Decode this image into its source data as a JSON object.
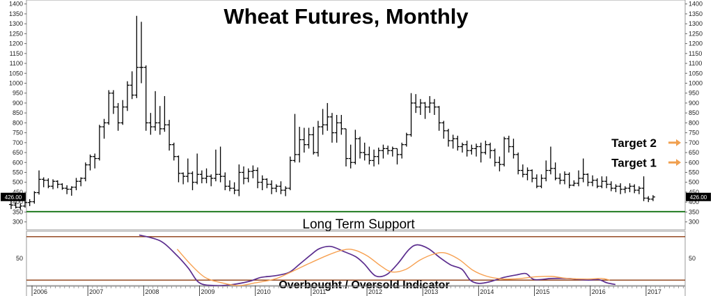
{
  "chart_data": {
    "type": "line",
    "title": "Wheat Futures, Monthly",
    "price_panel": {
      "ylim": [
        260,
        1420
      ],
      "yticks": [
        300,
        350,
        400,
        450,
        500,
        550,
        600,
        650,
        700,
        750,
        800,
        850,
        900,
        950,
        1000,
        1050,
        1100,
        1150,
        1200,
        1250,
        1300,
        1350,
        1400
      ],
      "last_price_label": "426.00",
      "last_price": 426,
      "support": {
        "value": 352,
        "label": "Long Term Support",
        "color": "#1f7a1f"
      },
      "targets": [
        {
          "label": "Target 2",
          "value": 700,
          "color": "#f0a050"
        },
        {
          "label": "Target 1",
          "value": 600,
          "color": "#f0a050"
        }
      ],
      "bars_start": [
        2005,
        8
      ],
      "ohlc": [
        [
          388,
          410,
          365,
          385
        ],
        [
          385,
          398,
          368,
          374
        ],
        [
          374,
          392,
          362,
          380
        ],
        [
          380,
          405,
          372,
          398
        ],
        [
          398,
          415,
          380,
          402
        ],
        [
          402,
          455,
          392,
          448
        ],
        [
          448,
          560,
          438,
          515
        ],
        [
          515,
          525,
          475,
          510
        ],
        [
          510,
          520,
          470,
          480
        ],
        [
          480,
          515,
          465,
          505
        ],
        [
          505,
          510,
          470,
          490
        ],
        [
          490,
          495,
          462,
          470
        ],
        [
          470,
          485,
          440,
          465
        ],
        [
          465,
          480,
          432,
          475
        ],
        [
          475,
          522,
          460,
          505
        ],
        [
          505,
          525,
          480,
          520
        ],
        [
          520,
          600,
          505,
          588
        ],
        [
          588,
          640,
          560,
          630
        ],
        [
          630,
          645,
          570,
          620
        ],
        [
          620,
          790,
          610,
          780
        ],
        [
          780,
          820,
          720,
          800
        ],
        [
          800,
          965,
          790,
          950
        ],
        [
          950,
          965,
          845,
          880
        ],
        [
          880,
          900,
          760,
          800
        ],
        [
          800,
          915,
          790,
          880
        ],
        [
          880,
          1010,
          860,
          990
        ],
        [
          990,
          1060,
          920,
          940
        ],
        [
          940,
          1340,
          925,
          1080
        ],
        [
          1080,
          1310,
          1000,
          1080
        ],
        [
          1080,
          1090,
          760,
          800
        ],
        [
          800,
          850,
          740,
          780
        ],
        [
          780,
          960,
          760,
          800
        ],
        [
          800,
          885,
          740,
          770
        ],
        [
          770,
          935,
          755,
          790
        ],
        [
          790,
          815,
          660,
          690
        ],
        [
          690,
          700,
          610,
          630
        ],
        [
          630,
          635,
          500,
          545
        ],
        [
          545,
          550,
          490,
          530
        ],
        [
          530,
          620,
          500,
          545
        ],
        [
          545,
          555,
          460,
          500
        ],
        [
          500,
          645,
          490,
          540
        ],
        [
          540,
          560,
          495,
          520
        ],
        [
          520,
          570,
          495,
          530
        ],
        [
          530,
          540,
          480,
          520
        ],
        [
          520,
          665,
          505,
          540
        ],
        [
          540,
          680,
          500,
          530
        ],
        [
          530,
          550,
          460,
          480
        ],
        [
          480,
          510,
          455,
          470
        ],
        [
          470,
          500,
          440,
          460
        ],
        [
          460,
          590,
          430,
          550
        ],
        [
          550,
          580,
          490,
          520
        ],
        [
          520,
          570,
          500,
          555
        ],
        [
          555,
          585,
          520,
          560
        ],
        [
          560,
          575,
          470,
          500
        ],
        [
          500,
          535,
          460,
          515
        ],
        [
          515,
          520,
          470,
          490
        ],
        [
          490,
          510,
          440,
          470
        ],
        [
          470,
          490,
          450,
          480
        ],
        [
          480,
          505,
          440,
          460
        ],
        [
          460,
          480,
          430,
          470
        ],
        [
          470,
          630,
          460,
          610
        ],
        [
          610,
          845,
          600,
          640
        ],
        [
          640,
          780,
          600,
          715
        ],
        [
          715,
          775,
          650,
          690
        ],
        [
          690,
          775,
          670,
          740
        ],
        [
          740,
          780,
          640,
          650
        ],
        [
          650,
          810,
          630,
          780
        ],
        [
          780,
          870,
          740,
          790
        ],
        [
          790,
          900,
          760,
          830
        ],
        [
          830,
          850,
          700,
          750
        ],
        [
          750,
          840,
          700,
          800
        ],
        [
          800,
          840,
          740,
          770
        ],
        [
          770,
          770,
          580,
          620
        ],
        [
          620,
          690,
          570,
          600
        ],
        [
          600,
          765,
          590,
          720
        ],
        [
          720,
          730,
          620,
          650
        ],
        [
          650,
          700,
          610,
          640
        ],
        [
          640,
          680,
          590,
          610
        ],
        [
          610,
          665,
          580,
          630
        ],
        [
          630,
          675,
          590,
          660
        ],
        [
          660,
          690,
          620,
          670
        ],
        [
          670,
          685,
          640,
          660
        ],
        [
          660,
          680,
          630,
          670
        ],
        [
          670,
          670,
          590,
          640
        ],
        [
          640,
          700,
          620,
          690
        ],
        [
          690,
          750,
          680,
          740
        ],
        [
          740,
          950,
          730,
          900
        ],
        [
          900,
          945,
          850,
          880
        ],
        [
          880,
          920,
          840,
          900
        ],
        [
          900,
          905,
          820,
          880
        ],
        [
          880,
          935,
          850,
          900
        ],
        [
          900,
          920,
          840,
          880
        ],
        [
          880,
          885,
          760,
          800
        ],
        [
          800,
          810,
          720,
          760
        ],
        [
          760,
          770,
          680,
          710
        ],
        [
          710,
          740,
          670,
          720
        ],
        [
          720,
          735,
          660,
          680
        ],
        [
          680,
          700,
          650,
          690
        ],
        [
          690,
          710,
          630,
          660
        ],
        [
          660,
          690,
          640,
          670
        ],
        [
          670,
          695,
          630,
          680
        ],
        [
          680,
          700,
          600,
          650
        ],
        [
          650,
          710,
          640,
          690
        ],
        [
          690,
          700,
          620,
          660
        ],
        [
          660,
          670,
          580,
          600
        ],
        [
          600,
          630,
          555,
          590
        ],
        [
          590,
          730,
          580,
          720
        ],
        [
          720,
          735,
          650,
          680
        ],
        [
          680,
          720,
          620,
          640
        ],
        [
          640,
          650,
          540,
          560
        ],
        [
          560,
          590,
          525,
          540
        ],
        [
          540,
          575,
          510,
          560
        ],
        [
          560,
          565,
          500,
          520
        ],
        [
          520,
          540,
          470,
          480
        ],
        [
          480,
          540,
          470,
          520
        ],
        [
          520,
          610,
          505,
          560
        ],
        [
          560,
          680,
          540,
          570
        ],
        [
          570,
          600,
          510,
          520
        ],
        [
          520,
          545,
          490,
          510
        ],
        [
          510,
          555,
          490,
          540
        ],
        [
          540,
          550,
          470,
          485
        ],
        [
          485,
          510,
          480,
          495
        ],
        [
          495,
          560,
          480,
          520
        ],
        [
          520,
          620,
          500,
          540
        ],
        [
          540,
          545,
          480,
          500
        ],
        [
          500,
          535,
          480,
          510
        ],
        [
          510,
          520,
          470,
          480
        ],
        [
          480,
          530,
          470,
          505
        ],
        [
          505,
          530,
          470,
          490
        ],
        [
          490,
          505,
          455,
          470
        ],
        [
          470,
          490,
          450,
          480
        ],
        [
          480,
          495,
          440,
          465
        ],
        [
          465,
          480,
          445,
          470
        ],
        [
          470,
          495,
          450,
          480
        ],
        [
          480,
          490,
          445,
          460
        ],
        [
          460,
          480,
          440,
          470
        ],
        [
          470,
          530,
          405,
          420
        ],
        [
          420,
          430,
          400,
          415
        ],
        [
          415,
          435,
          405,
          426
        ]
      ]
    },
    "indicator_panel": {
      "label": "Overbought / Oversold Indicator",
      "ylim": [
        0,
        100
      ],
      "yticks": [
        50
      ],
      "upper_band": 90,
      "lower_band": 10,
      "band_color": "#8b3a0f",
      "series": [
        {
          "color": "#5b2d8e",
          "points": [
            [
              2007.92,
              93
            ],
            [
              2008.3,
              82
            ],
            [
              2008.6,
              55
            ],
            [
              2008.8,
              32
            ],
            [
              2009.0,
              5
            ],
            [
              2009.3,
              0
            ],
            [
              2009.6,
              2
            ],
            [
              2009.9,
              8
            ],
            [
              2010.1,
              15
            ],
            [
              2010.35,
              18
            ],
            [
              2010.6,
              24
            ],
            [
              2010.8,
              40
            ],
            [
              2011.0,
              57
            ],
            [
              2011.15,
              68
            ],
            [
              2011.35,
              72
            ],
            [
              2011.6,
              62
            ],
            [
              2011.8,
              53
            ],
            [
              2011.95,
              40
            ],
            [
              2012.15,
              18
            ],
            [
              2012.35,
              20
            ],
            [
              2012.55,
              40
            ],
            [
              2012.75,
              66
            ],
            [
              2012.9,
              75
            ],
            [
              2013.1,
              68
            ],
            [
              2013.3,
              52
            ],
            [
              2013.5,
              38
            ],
            [
              2013.7,
              30
            ],
            [
              2013.85,
              10
            ],
            [
              2014.0,
              4
            ],
            [
              2014.2,
              7
            ],
            [
              2014.45,
              15
            ],
            [
              2014.7,
              20
            ],
            [
              2014.85,
              22
            ],
            [
              2015.0,
              11
            ],
            [
              2015.3,
              13
            ],
            [
              2015.6,
              13
            ],
            [
              2015.95,
              10
            ],
            [
              2016.15,
              11
            ],
            [
              2016.3,
              5
            ],
            [
              2016.45,
              2
            ]
          ]
        },
        {
          "color": "#f7a050",
          "points": [
            [
              2008.6,
              67
            ],
            [
              2008.85,
              38
            ],
            [
              2009.1,
              15
            ],
            [
              2009.4,
              5
            ],
            [
              2009.7,
              0
            ],
            [
              2010.0,
              5
            ],
            [
              2010.35,
              12
            ],
            [
              2010.6,
              23
            ],
            [
              2010.95,
              40
            ],
            [
              2011.3,
              56
            ],
            [
              2011.55,
              65
            ],
            [
              2011.75,
              66
            ],
            [
              2012.0,
              55
            ],
            [
              2012.25,
              36
            ],
            [
              2012.45,
              25
            ],
            [
              2012.7,
              30
            ],
            [
              2012.95,
              47
            ],
            [
              2013.2,
              58
            ],
            [
              2013.4,
              60
            ],
            [
              2013.65,
              48
            ],
            [
              2013.9,
              28
            ],
            [
              2014.15,
              17
            ],
            [
              2014.45,
              12
            ],
            [
              2014.75,
              13
            ],
            [
              2015.0,
              16
            ],
            [
              2015.3,
              17
            ],
            [
              2015.6,
              13
            ],
            [
              2015.95,
              12
            ],
            [
              2016.2,
              13
            ],
            [
              2016.35,
              10
            ]
          ]
        }
      ]
    },
    "x_axis": {
      "start": 2005.9,
      "end": 2017.7,
      "labels": [
        "2006",
        "2007",
        "2008",
        "2009",
        "2010",
        "2011",
        "2012",
        "2013",
        "2014",
        "2015",
        "2016",
        "2017"
      ]
    }
  }
}
